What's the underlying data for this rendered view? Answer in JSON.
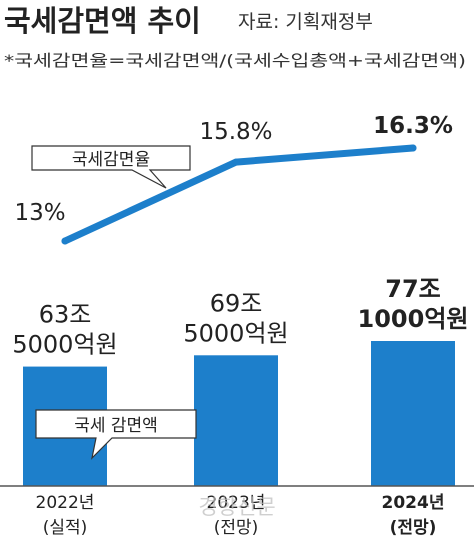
{
  "title": "국세감면액 추이",
  "source": "자료: 기획재정부",
  "formula": "*국세감면율=국세감면액/(국세수입총액+국세감면액)",
  "watermark": "경향신문",
  "colors": {
    "bar": "#1d7fcb",
    "line": "#1d7fcb",
    "text": "#222222",
    "axis": "#555555"
  },
  "chart_data": {
    "type": "bar+line",
    "categories": [
      {
        "year": "2022년",
        "note": "(실적)"
      },
      {
        "year": "2023년",
        "note": "(전망)"
      },
      {
        "year": "2024년",
        "note": "(전망)"
      }
    ],
    "series": [
      {
        "name": "국세 감면액",
        "type": "bar",
        "unit": "억원",
        "values": [
          635000,
          695000,
          771000
        ],
        "labels": [
          [
            "63조",
            "5000억원"
          ],
          [
            "69조",
            "5000억원"
          ],
          [
            "77조",
            "1000억원"
          ]
        ]
      },
      {
        "name": "국세감면율",
        "type": "line",
        "unit": "%",
        "values": [
          13.0,
          15.8,
          16.3
        ],
        "labels": [
          "13%",
          "15.8%",
          "16.3%"
        ]
      }
    ],
    "emphasis_index": 2
  }
}
